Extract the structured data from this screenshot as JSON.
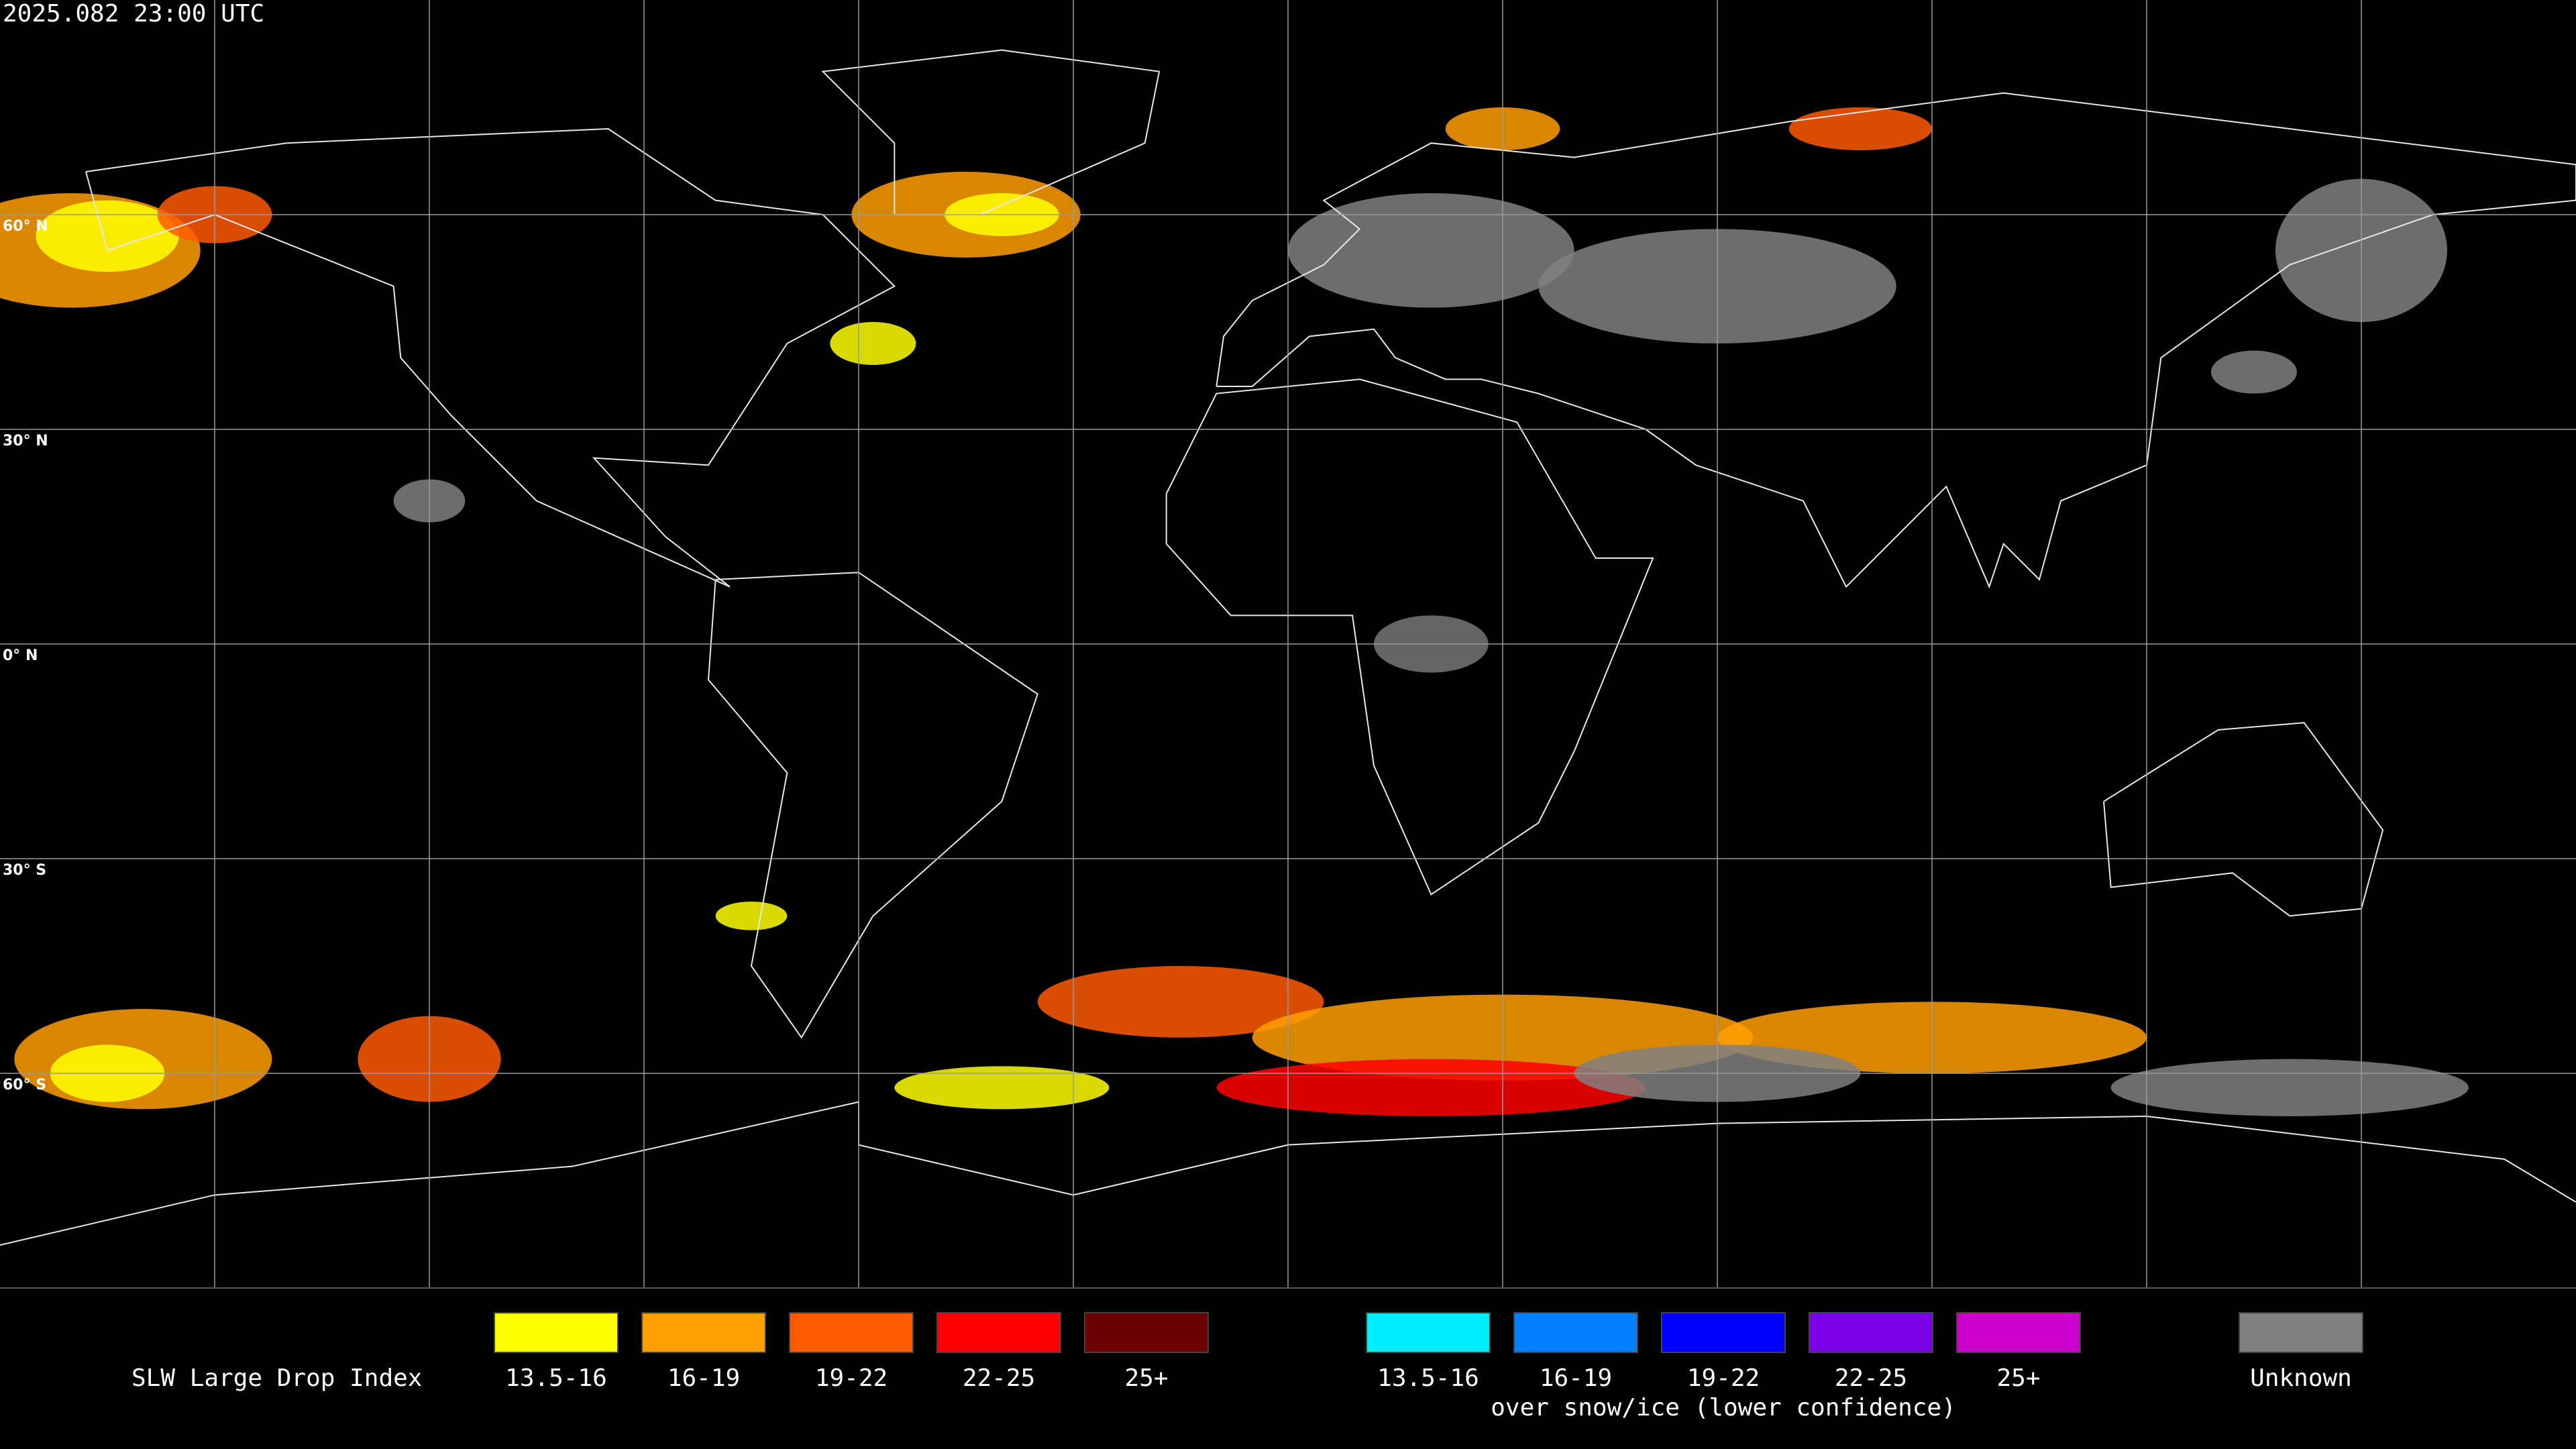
{
  "timestamp": "2025.082 23:00 UTC",
  "latitude_labels": [
    "60° N",
    "30° N",
    "0° N",
    "30° S",
    "60° S"
  ],
  "legend": {
    "title": "SLW Large Drop Index",
    "groups": [
      {
        "items": [
          {
            "label": "13.5-16",
            "color": "#ffff00"
          },
          {
            "label": "16-19",
            "color": "#ff9f00"
          },
          {
            "label": "19-22",
            "color": "#ff5a00"
          },
          {
            "label": "22-25",
            "color": "#ff0000"
          },
          {
            "label": "25+",
            "color": "#6b0000"
          }
        ]
      },
      {
        "items": [
          {
            "label": "13.5-16",
            "color": "#00eeff"
          },
          {
            "label": "16-19",
            "color": "#0080ff"
          },
          {
            "label": "19-22",
            "color": "#0000ff"
          },
          {
            "label": "22-25",
            "color": "#7a00e6"
          },
          {
            "label": "25+",
            "color": "#cc00cc"
          }
        ],
        "caption": "over snow/ice (lower confidence)"
      }
    ],
    "unknown": {
      "label": "Unknown",
      "color": "#808080"
    }
  }
}
